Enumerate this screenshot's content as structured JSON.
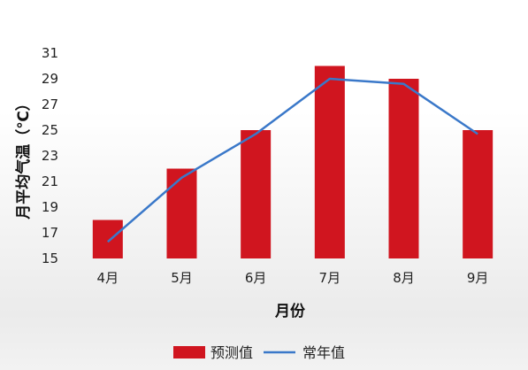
{
  "chart_data": {
    "type": "bar",
    "categories": [
      "4月",
      "5月",
      "6月",
      "7月",
      "8月",
      "9月"
    ],
    "series": [
      {
        "name": "预测值",
        "type": "bar",
        "values": [
          18,
          22,
          25,
          30,
          29,
          25
        ],
        "color": "#d0151f"
      },
      {
        "name": "常年值",
        "type": "line",
        "values": [
          16.3,
          21.3,
          24.7,
          29.0,
          28.6,
          24.7
        ],
        "color": "#3a78c9"
      }
    ],
    "xlabel": "月份",
    "ylabel": "月平均气温（℃）",
    "ylim": [
      15,
      31
    ],
    "yticks": [
      15,
      17,
      19,
      21,
      23,
      25,
      27,
      29,
      31
    ],
    "grid": false,
    "legend_position": "bottom"
  }
}
